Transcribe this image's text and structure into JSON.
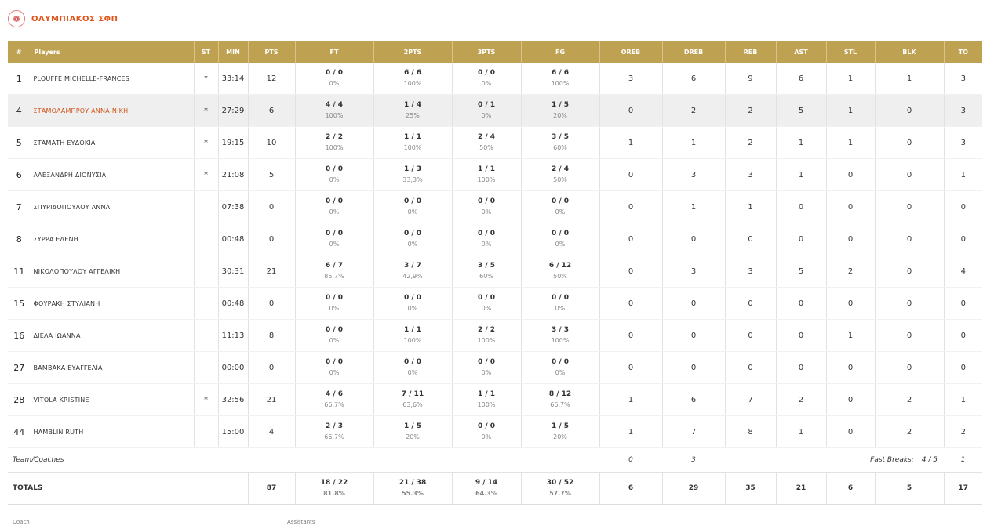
{
  "team": {
    "name": "ΟΛΥΜΠΙΑΚΟΣ ΣΦΠ"
  },
  "headers": [
    "#",
    "Players",
    "ST",
    "MIN",
    "PTS",
    "FT",
    "2PTS",
    "3PTS",
    "FG",
    "OREB",
    "DREB",
    "REB",
    "AST",
    "STL",
    "BLK",
    "TO"
  ],
  "players": [
    {
      "num": "1",
      "name": "PLOUFFE MICHELLE-FRANCES",
      "st": "*",
      "min": "33:14",
      "pts": "12",
      "ft": "0 / 0",
      "ft_pct": "0%",
      "p2": "6 / 6",
      "p2_pct": "100%",
      "p3": "0 / 0",
      "p3_pct": "0%",
      "fg": "6 / 6",
      "fg_pct": "100%",
      "oreb": "3",
      "dreb": "6",
      "reb": "9",
      "ast": "6",
      "stl": "1",
      "blk": "1",
      "to": "3"
    },
    {
      "num": "4",
      "name": "ΣΤΑΜΟΛΑΜΠΡΟΥ ΑΝΝΑ-ΝΙΚΗ",
      "st": "*",
      "min": "27:29",
      "pts": "6",
      "ft": "4 / 4",
      "ft_pct": "100%",
      "p2": "1 / 4",
      "p2_pct": "25%",
      "p3": "0 / 1",
      "p3_pct": "0%",
      "fg": "1 / 5",
      "fg_pct": "20%",
      "oreb": "0",
      "dreb": "2",
      "reb": "2",
      "ast": "5",
      "stl": "1",
      "blk": "0",
      "to": "3"
    },
    {
      "num": "5",
      "name": "ΣΤΑΜΑΤΗ ΕΥΔΟΚΙΑ",
      "st": "*",
      "min": "19:15",
      "pts": "10",
      "ft": "2 / 2",
      "ft_pct": "100%",
      "p2": "1 / 1",
      "p2_pct": "100%",
      "p3": "2 / 4",
      "p3_pct": "50%",
      "fg": "3 / 5",
      "fg_pct": "60%",
      "oreb": "1",
      "dreb": "1",
      "reb": "2",
      "ast": "1",
      "stl": "1",
      "blk": "0",
      "to": "3"
    },
    {
      "num": "6",
      "name": "ΑΛΕΞΑΝΔΡΗ ΔΙΟΝΥΣΙΑ",
      "st": "*",
      "min": "21:08",
      "pts": "5",
      "ft": "0 / 0",
      "ft_pct": "0%",
      "p2": "1 / 3",
      "p2_pct": "33,3%",
      "p3": "1 / 1",
      "p3_pct": "100%",
      "fg": "2 / 4",
      "fg_pct": "50%",
      "oreb": "0",
      "dreb": "3",
      "reb": "3",
      "ast": "1",
      "stl": "0",
      "blk": "0",
      "to": "1"
    },
    {
      "num": "7",
      "name": "ΣΠΥΡΙΔΟΠΟΥΛΟΥ ΑΝΝΑ",
      "st": "",
      "min": "07:38",
      "pts": "0",
      "ft": "0 / 0",
      "ft_pct": "0%",
      "p2": "0 / 0",
      "p2_pct": "0%",
      "p3": "0 / 0",
      "p3_pct": "0%",
      "fg": "0 / 0",
      "fg_pct": "0%",
      "oreb": "0",
      "dreb": "1",
      "reb": "1",
      "ast": "0",
      "stl": "0",
      "blk": "0",
      "to": "0"
    },
    {
      "num": "8",
      "name": "ΣΥΡΡΑ ΕΛΕΝΗ",
      "st": "",
      "min": "00:48",
      "pts": "0",
      "ft": "0 / 0",
      "ft_pct": "0%",
      "p2": "0 / 0",
      "p2_pct": "0%",
      "p3": "0 / 0",
      "p3_pct": "0%",
      "fg": "0 / 0",
      "fg_pct": "0%",
      "oreb": "0",
      "dreb": "0",
      "reb": "0",
      "ast": "0",
      "stl": "0",
      "blk": "0",
      "to": "0"
    },
    {
      "num": "11",
      "name": "ΝΙΚΟΛΟΠΟΥΛΟΥ ΑΓΓΕΛΙΚΗ",
      "st": "",
      "min": "30:31",
      "pts": "21",
      "ft": "6 / 7",
      "ft_pct": "85,7%",
      "p2": "3 / 7",
      "p2_pct": "42,9%",
      "p3": "3 / 5",
      "p3_pct": "60%",
      "fg": "6 / 12",
      "fg_pct": "50%",
      "oreb": "0",
      "dreb": "3",
      "reb": "3",
      "ast": "5",
      "stl": "2",
      "blk": "0",
      "to": "4"
    },
    {
      "num": "15",
      "name": "ΦΟΥΡΑΚΗ ΣΤΥΛΙΑΝΗ",
      "st": "",
      "min": "00:48",
      "pts": "0",
      "ft": "0 / 0",
      "ft_pct": "0%",
      "p2": "0 / 0",
      "p2_pct": "0%",
      "p3": "0 / 0",
      "p3_pct": "0%",
      "fg": "0 / 0",
      "fg_pct": "0%",
      "oreb": "0",
      "dreb": "0",
      "reb": "0",
      "ast": "0",
      "stl": "0",
      "blk": "0",
      "to": "0"
    },
    {
      "num": "16",
      "name": "ΔΙΕΛΑ ΙΩΑΝΝΑ",
      "st": "",
      "min": "11:13",
      "pts": "8",
      "ft": "0 / 0",
      "ft_pct": "0%",
      "p2": "1 / 1",
      "p2_pct": "100%",
      "p3": "2 / 2",
      "p3_pct": "100%",
      "fg": "3 / 3",
      "fg_pct": "100%",
      "oreb": "0",
      "dreb": "0",
      "reb": "0",
      "ast": "0",
      "stl": "1",
      "blk": "0",
      "to": "0"
    },
    {
      "num": "27",
      "name": "ΒΑΜΒΑΚΑ ΕΥΑΓΓΕΛΙΑ",
      "st": "",
      "min": "00:00",
      "pts": "0",
      "ft": "0 / 0",
      "ft_pct": "0%",
      "p2": "0 / 0",
      "p2_pct": "0%",
      "p3": "0 / 0",
      "p3_pct": "0%",
      "fg": "0 / 0",
      "fg_pct": "0%",
      "oreb": "0",
      "dreb": "0",
      "reb": "0",
      "ast": "0",
      "stl": "0",
      "blk": "0",
      "to": "0"
    },
    {
      "num": "28",
      "name": "VITOLA KRISTINE",
      "st": "*",
      "min": "32:56",
      "pts": "21",
      "ft": "4 / 6",
      "ft_pct": "66,7%",
      "p2": "7 / 11",
      "p2_pct": "63,6%",
      "p3": "1 / 1",
      "p3_pct": "100%",
      "fg": "8 / 12",
      "fg_pct": "66,7%",
      "oreb": "1",
      "dreb": "6",
      "reb": "7",
      "ast": "2",
      "stl": "0",
      "blk": "2",
      "to": "1"
    },
    {
      "num": "44",
      "name": "HAMBLIN RUTH",
      "st": "",
      "min": "15:00",
      "pts": "4",
      "ft": "2 / 3",
      "ft_pct": "66,7%",
      "p2": "1 / 5",
      "p2_pct": "20%",
      "p3": "0 / 0",
      "p3_pct": "0%",
      "fg": "1 / 5",
      "fg_pct": "20%",
      "oreb": "1",
      "dreb": "7",
      "reb": "8",
      "ast": "1",
      "stl": "0",
      "blk": "2",
      "to": "2"
    }
  ],
  "team_coaches": {
    "label": "Team/Coaches",
    "oreb": "0",
    "dreb": "3",
    "fast_breaks_label": "Fast Breaks:",
    "fast_breaks_value": "4 / 5",
    "to": "1"
  },
  "totals": {
    "label": "TOTALS",
    "pts": "87",
    "ft": "18 / 22",
    "ft_pct": "81.8%",
    "p2": "21 / 38",
    "p2_pct": "55.3%",
    "p3": "9 / 14",
    "p3_pct": "64.3%",
    "fg": "30 / 52",
    "fg_pct": "57.7%",
    "oreb": "6",
    "dreb": "29",
    "reb": "35",
    "ast": "21",
    "stl": "6",
    "blk": "5",
    "to": "17"
  },
  "footer": {
    "coach_label": "Coach",
    "assistants_label": "Assistants"
  }
}
